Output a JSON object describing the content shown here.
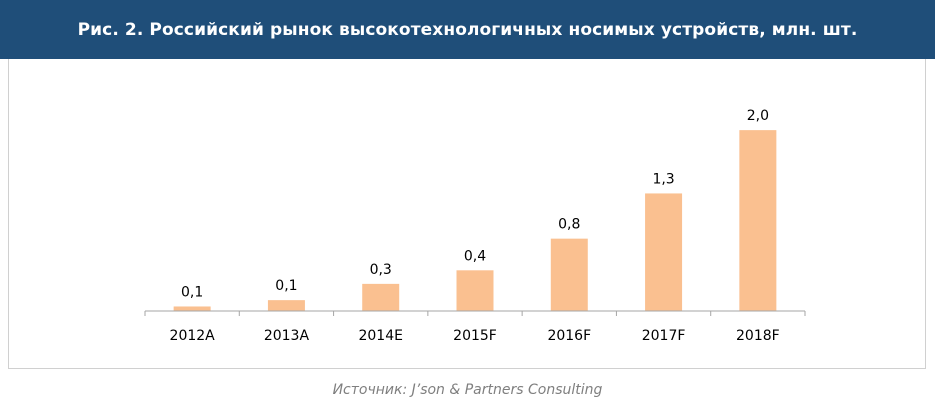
{
  "header": {
    "title": "Рис. 2. Российский рынок высокотехнологичных носимых устройств, млн. шт."
  },
  "chart_data": {
    "type": "bar",
    "categories": [
      "2012A",
      "2013A",
      "2014E",
      "2015F",
      "2016F",
      "2017F",
      "2018F"
    ],
    "values": [
      0.05,
      0.12,
      0.3,
      0.45,
      0.8,
      1.3,
      2.0
    ],
    "data_labels": [
      "0,1",
      "0,1",
      "0,3",
      "0,4",
      "0,8",
      "1,3",
      "2,0"
    ],
    "ylim": [
      0,
      2.3
    ],
    "grid": false,
    "bar_color": "#fac090"
  },
  "footer": {
    "source": "Источник: J’son & Partners Consulting"
  },
  "colors": {
    "header_bg": "#1f4e79",
    "header_text": "#ffffff",
    "source_text": "#7f7f7f"
  }
}
